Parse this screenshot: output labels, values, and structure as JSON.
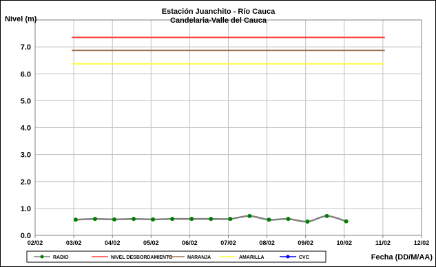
{
  "chart_data": {
    "type": "line",
    "title": "Estación Juanchito - Río Cauca",
    "subtitle": "Candelaria-Valle del Cauca",
    "ylabel": "Nivel (m)",
    "xlabel": "Fecha (DD/M/AA)",
    "ylim": [
      0,
      8
    ],
    "yticks": [
      "0.0",
      "1.0",
      "2.0",
      "3.0",
      "4.0",
      "5.0",
      "6.0",
      "7.0"
    ],
    "xlim": [
      0,
      10
    ],
    "xticks": [
      "02/02",
      "03/02",
      "04/02",
      "05/02",
      "06/02",
      "07/02",
      "08/02",
      "09/02",
      "10/02",
      "11/02",
      "12/02"
    ],
    "grid": true,
    "legend_position": "bottom",
    "series": [
      {
        "name": "RADIO",
        "color": "#808080",
        "marker_color": "#008000",
        "x": [
          1.05,
          1.55,
          2.05,
          2.55,
          3.05,
          3.55,
          4.05,
          4.55,
          5.05,
          5.55,
          6.05,
          6.55,
          7.05,
          7.55,
          8.05
        ],
        "values": [
          0.58,
          0.61,
          0.59,
          0.61,
          0.59,
          0.61,
          0.61,
          0.61,
          0.61,
          0.72,
          0.58,
          0.61,
          0.51,
          0.72,
          0.52
        ]
      },
      {
        "name": "NIVEL DESBORDAMIENTO",
        "color": "#ff4040",
        "x": [
          0.95,
          9.05
        ],
        "values": [
          7.35,
          7.35
        ]
      },
      {
        "name": "NARANJA",
        "color": "#a0724c",
        "x": [
          0.95,
          9.05
        ],
        "values": [
          6.87,
          6.87
        ]
      },
      {
        "name": "AMARILLA",
        "color": "#ffff40",
        "x": [
          0.95,
          9.05
        ],
        "values": [
          6.37,
          6.37
        ]
      },
      {
        "name": "CVC",
        "color": "#0000ff",
        "x": [],
        "values": []
      }
    ]
  }
}
